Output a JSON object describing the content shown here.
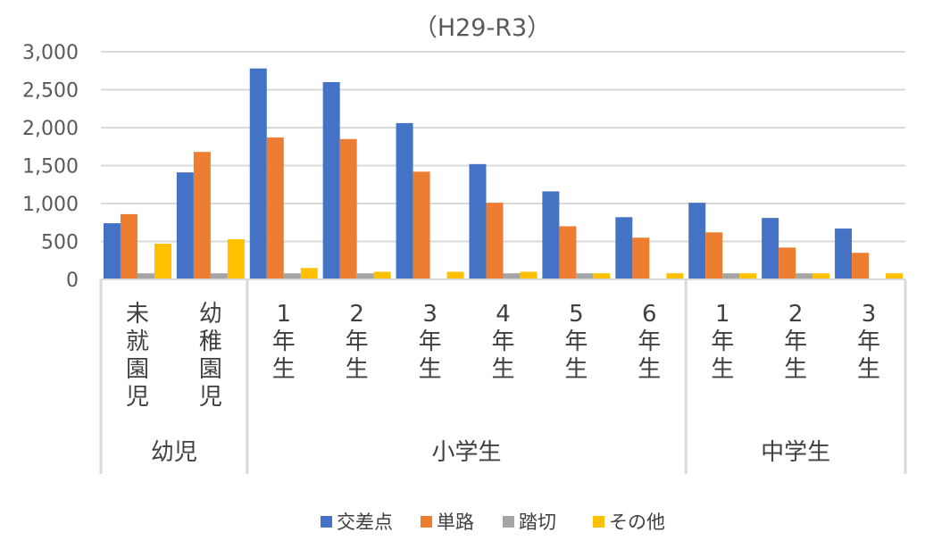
{
  "chart_data": {
    "type": "bar",
    "title": "（H29-R3）",
    "categories": [
      "未就園児",
      "幼稚園児",
      "1年生",
      "2年生",
      "3年生",
      "4年生",
      "5年生",
      "6年生",
      "1年生",
      "2年生",
      "3年生"
    ],
    "groups": [
      {
        "label": "幼児",
        "count": 2
      },
      {
        "label": "小学生",
        "count": 6
      },
      {
        "label": "中学生",
        "count": 3
      }
    ],
    "series": [
      {
        "name": "交差点",
        "color": "#4472C4",
        "values": [
          740,
          1410,
          2780,
          2600,
          2060,
          1520,
          1160,
          820,
          1010,
          810,
          670
        ]
      },
      {
        "name": "単路",
        "color": "#ED7D31",
        "values": [
          860,
          1680,
          1870,
          1850,
          1420,
          1010,
          700,
          550,
          620,
          420,
          350
        ]
      },
      {
        "name": "踏切",
        "color": "#A5A5A5",
        "values": [
          80,
          80,
          80,
          80,
          0,
          80,
          80,
          0,
          80,
          80,
          0
        ]
      },
      {
        "name": "その他",
        "color": "#FFC000",
        "values": [
          470,
          530,
          150,
          100,
          100,
          100,
          80,
          80,
          80,
          80,
          80
        ]
      }
    ],
    "ylim": [
      0,
      3000
    ],
    "yticks": [
      "0",
      "500",
      "1,000",
      "1,500",
      "2,000",
      "2,500",
      "3,000"
    ],
    "grid": true,
    "legend": "bottom"
  }
}
